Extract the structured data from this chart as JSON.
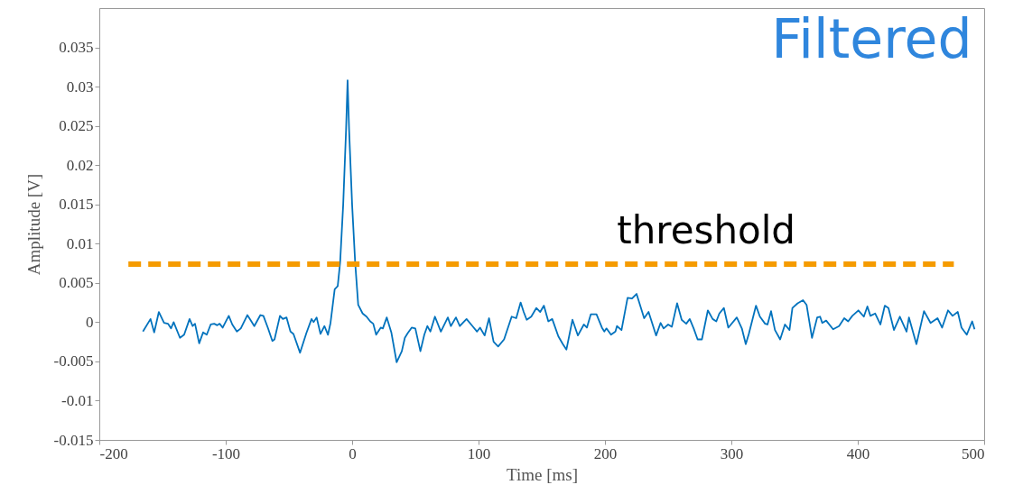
{
  "chart_data": {
    "type": "line",
    "title": "Filtered",
    "xlabel": "Time [ms]",
    "ylabel": "Amplitude [V]",
    "xlim": [
      -200,
      500
    ],
    "xticks": [
      -200,
      -100,
      0,
      100,
      200,
      300,
      400,
      500
    ],
    "ylim": [
      -0.015,
      0.04
    ],
    "yticks": [
      -0.015,
      -0.01,
      -0.005,
      0,
      0.005,
      0.01,
      0.015,
      0.02,
      0.025,
      0.03,
      0.035
    ],
    "grid": false,
    "series": [
      {
        "color": "#0072bd",
        "x": [
          -165.5,
          -159.5,
          -156.6,
          -152.9,
          -148.8,
          -145.7,
          -143.3,
          -141.2,
          -136.2,
          -132.9,
          -128.6,
          -126.2,
          -124.3,
          -121,
          -117.9,
          -115,
          -111.9,
          -109.1,
          -106.7,
          -104.8,
          -102.4,
          -97.6,
          -94.8,
          -91.2,
          -88.1,
          -82.9,
          -80.5,
          -77.4,
          -72.6,
          -70.2,
          -66.7,
          -63.1,
          -61.4,
          -57.1,
          -54.8,
          -51.9,
          -48.8,
          -46.4,
          -41.2,
          -36.2,
          -32.1,
          -30.5,
          -28.1,
          -25,
          -21.9,
          -19.1,
          -17.1,
          -13.8,
          -11.4,
          -9.5,
          -7.1,
          -4.8,
          -3.6,
          -2.4,
          0,
          2.4,
          4.8,
          8.3,
          11.4,
          14.3,
          16.7,
          19,
          22.6,
          24.3,
          27.4,
          31,
          35.2,
          39.3,
          41.7,
          44,
          47.1,
          50,
          54,
          57.1,
          59.5,
          61.9,
          65.5,
          70.2,
          75.7,
          78.1,
          82.1,
          85.2,
          90.5,
          95.2,
          98.8,
          101.2,
          104.8,
          108.3,
          111.9,
          115.5,
          120.2,
          126.2,
          129.8,
          133.3,
          135.7,
          138.1,
          141.7,
          145.7,
          148.8,
          151.7,
          155.2,
          158.3,
          163.1,
          166.7,
          169.5,
          174.3,
          178.6,
          183.3,
          185.7,
          188.8,
          193.3,
          197.6,
          199.5,
          201.2,
          204.8,
          208.3,
          209.5,
          213.1,
          217.9,
          221.4,
          225,
          231,
          234.5,
          240.5,
          244,
          246.4,
          250,
          252.9,
          257.1,
          260.7,
          264.3,
          267.1,
          270.2,
          273.3,
          276.7,
          281.4,
          285.2,
          288.1,
          290.5,
          294.1,
          297.6,
          304.3,
          308.3,
          311.4,
          313.8,
          319.5,
          322.6,
          326.7,
          328.6,
          331.4,
          334.5,
          338.6,
          342.4,
          346,
          348.3,
          352.4,
          356.7,
          359.5,
          363.8,
          367.9,
          370.2,
          371.9,
          375,
          380.5,
          385.2,
          389.3,
          392.4,
          395.7,
          400.5,
          404.8,
          407.6,
          410,
          413.8,
          417.9,
          421.4,
          424.3,
          428.6,
          433.3,
          438.6,
          440.5,
          446.4,
          452.4,
          457.6,
          463.1,
          466.7,
          471.4,
          475,
          479.1,
          482.1,
          486.2,
          490.5,
          492.4
        ],
        "values": [
          -0.0012,
          0.0004,
          -0.0013,
          0.0013,
          -0.0001,
          -0.0002,
          -0.0008,
          0,
          -0.002,
          -0.0016,
          0.0004,
          -0.0005,
          -0.0002,
          -0.0027,
          -0.0013,
          -0.0016,
          -0.0003,
          -0.0002,
          -0.0004,
          -0.0002,
          -0.0007,
          0.0008,
          -0.0003,
          -0.0012,
          -0.0008,
          0.0009,
          0.0003,
          -0.0005,
          0.0009,
          0.0008,
          -0.0007,
          -0.0024,
          -0.0022,
          0.0008,
          0.0004,
          0.0006,
          -0.0012,
          -0.0015,
          -0.0039,
          -0.0014,
          0.0004,
          0,
          0.0006,
          -0.0015,
          -0.0005,
          -0.0016,
          -0.0001,
          0.0042,
          0.0046,
          0.0076,
          0.0149,
          0.0245,
          0.0308,
          0.0245,
          0.0149,
          0.0076,
          0.0022,
          0.0011,
          0.0007,
          0.0001,
          -0.0002,
          -0.0016,
          -0.0007,
          -0.0008,
          0.0006,
          -0.0013,
          -0.0051,
          -0.0037,
          -0.002,
          -0.0014,
          -0.0007,
          -0.0008,
          -0.0037,
          -0.0016,
          -0.0005,
          -0.0012,
          0.0007,
          -0.0012,
          0.0006,
          -0.0005,
          0.0006,
          -0.0005,
          0.0004,
          -0.0005,
          -0.0012,
          -0.0007,
          -0.0017,
          0.0005,
          -0.0025,
          -0.0031,
          -0.0022,
          0.0007,
          0.0005,
          0.0025,
          0.0013,
          0.0003,
          0.0007,
          0.0018,
          0.0013,
          0.0021,
          0.0001,
          0.0004,
          -0.0018,
          -0.0028,
          -0.0035,
          0.0003,
          -0.0017,
          -0.0003,
          -0.0007,
          0.001,
          0.001,
          -0.0007,
          -0.0012,
          -0.0008,
          -0.0016,
          -0.0012,
          -0.0005,
          -0.001,
          0.0031,
          0.003,
          0.0036,
          0.0005,
          0.0013,
          -0.0017,
          -0.0001,
          -0.0008,
          -0.0003,
          -0.0006,
          0.0024,
          0.0003,
          -0.0002,
          0.0004,
          -0.0008,
          -0.0022,
          -0.0022,
          0.0015,
          0.0004,
          0.0001,
          0.0011,
          0.0018,
          -0.0007,
          0.0006,
          -0.0008,
          -0.0028,
          -0.0015,
          0.0021,
          0.0007,
          -0.0002,
          -0.0003,
          0.0014,
          -0.001,
          -0.0022,
          -0.0003,
          -0.001,
          0.0018,
          0.0024,
          0.0028,
          0.0022,
          -0.002,
          0.0006,
          0.0007,
          -0.0001,
          0.0002,
          -0.0009,
          -0.0005,
          0.0005,
          0.0001,
          0.0008,
          0.0015,
          0.0007,
          0.002,
          0.0008,
          0.0011,
          -0.0003,
          0.0021,
          0.0018,
          -0.001,
          0.0007,
          -0.0012,
          0.0006,
          -0.0028,
          0.0014,
          -0.0001,
          0.0005,
          -0.0007,
          0.0015,
          0.0008,
          0.0013,
          -0.0007,
          -0.0016,
          0.0001,
          -0.0009
        ]
      },
      {
        "name": "threshold",
        "color": "#f59b00",
        "line_style": "dashed",
        "x": [
          -177,
          476
        ],
        "values": [
          0.0074,
          0.0074
        ]
      }
    ]
  }
}
